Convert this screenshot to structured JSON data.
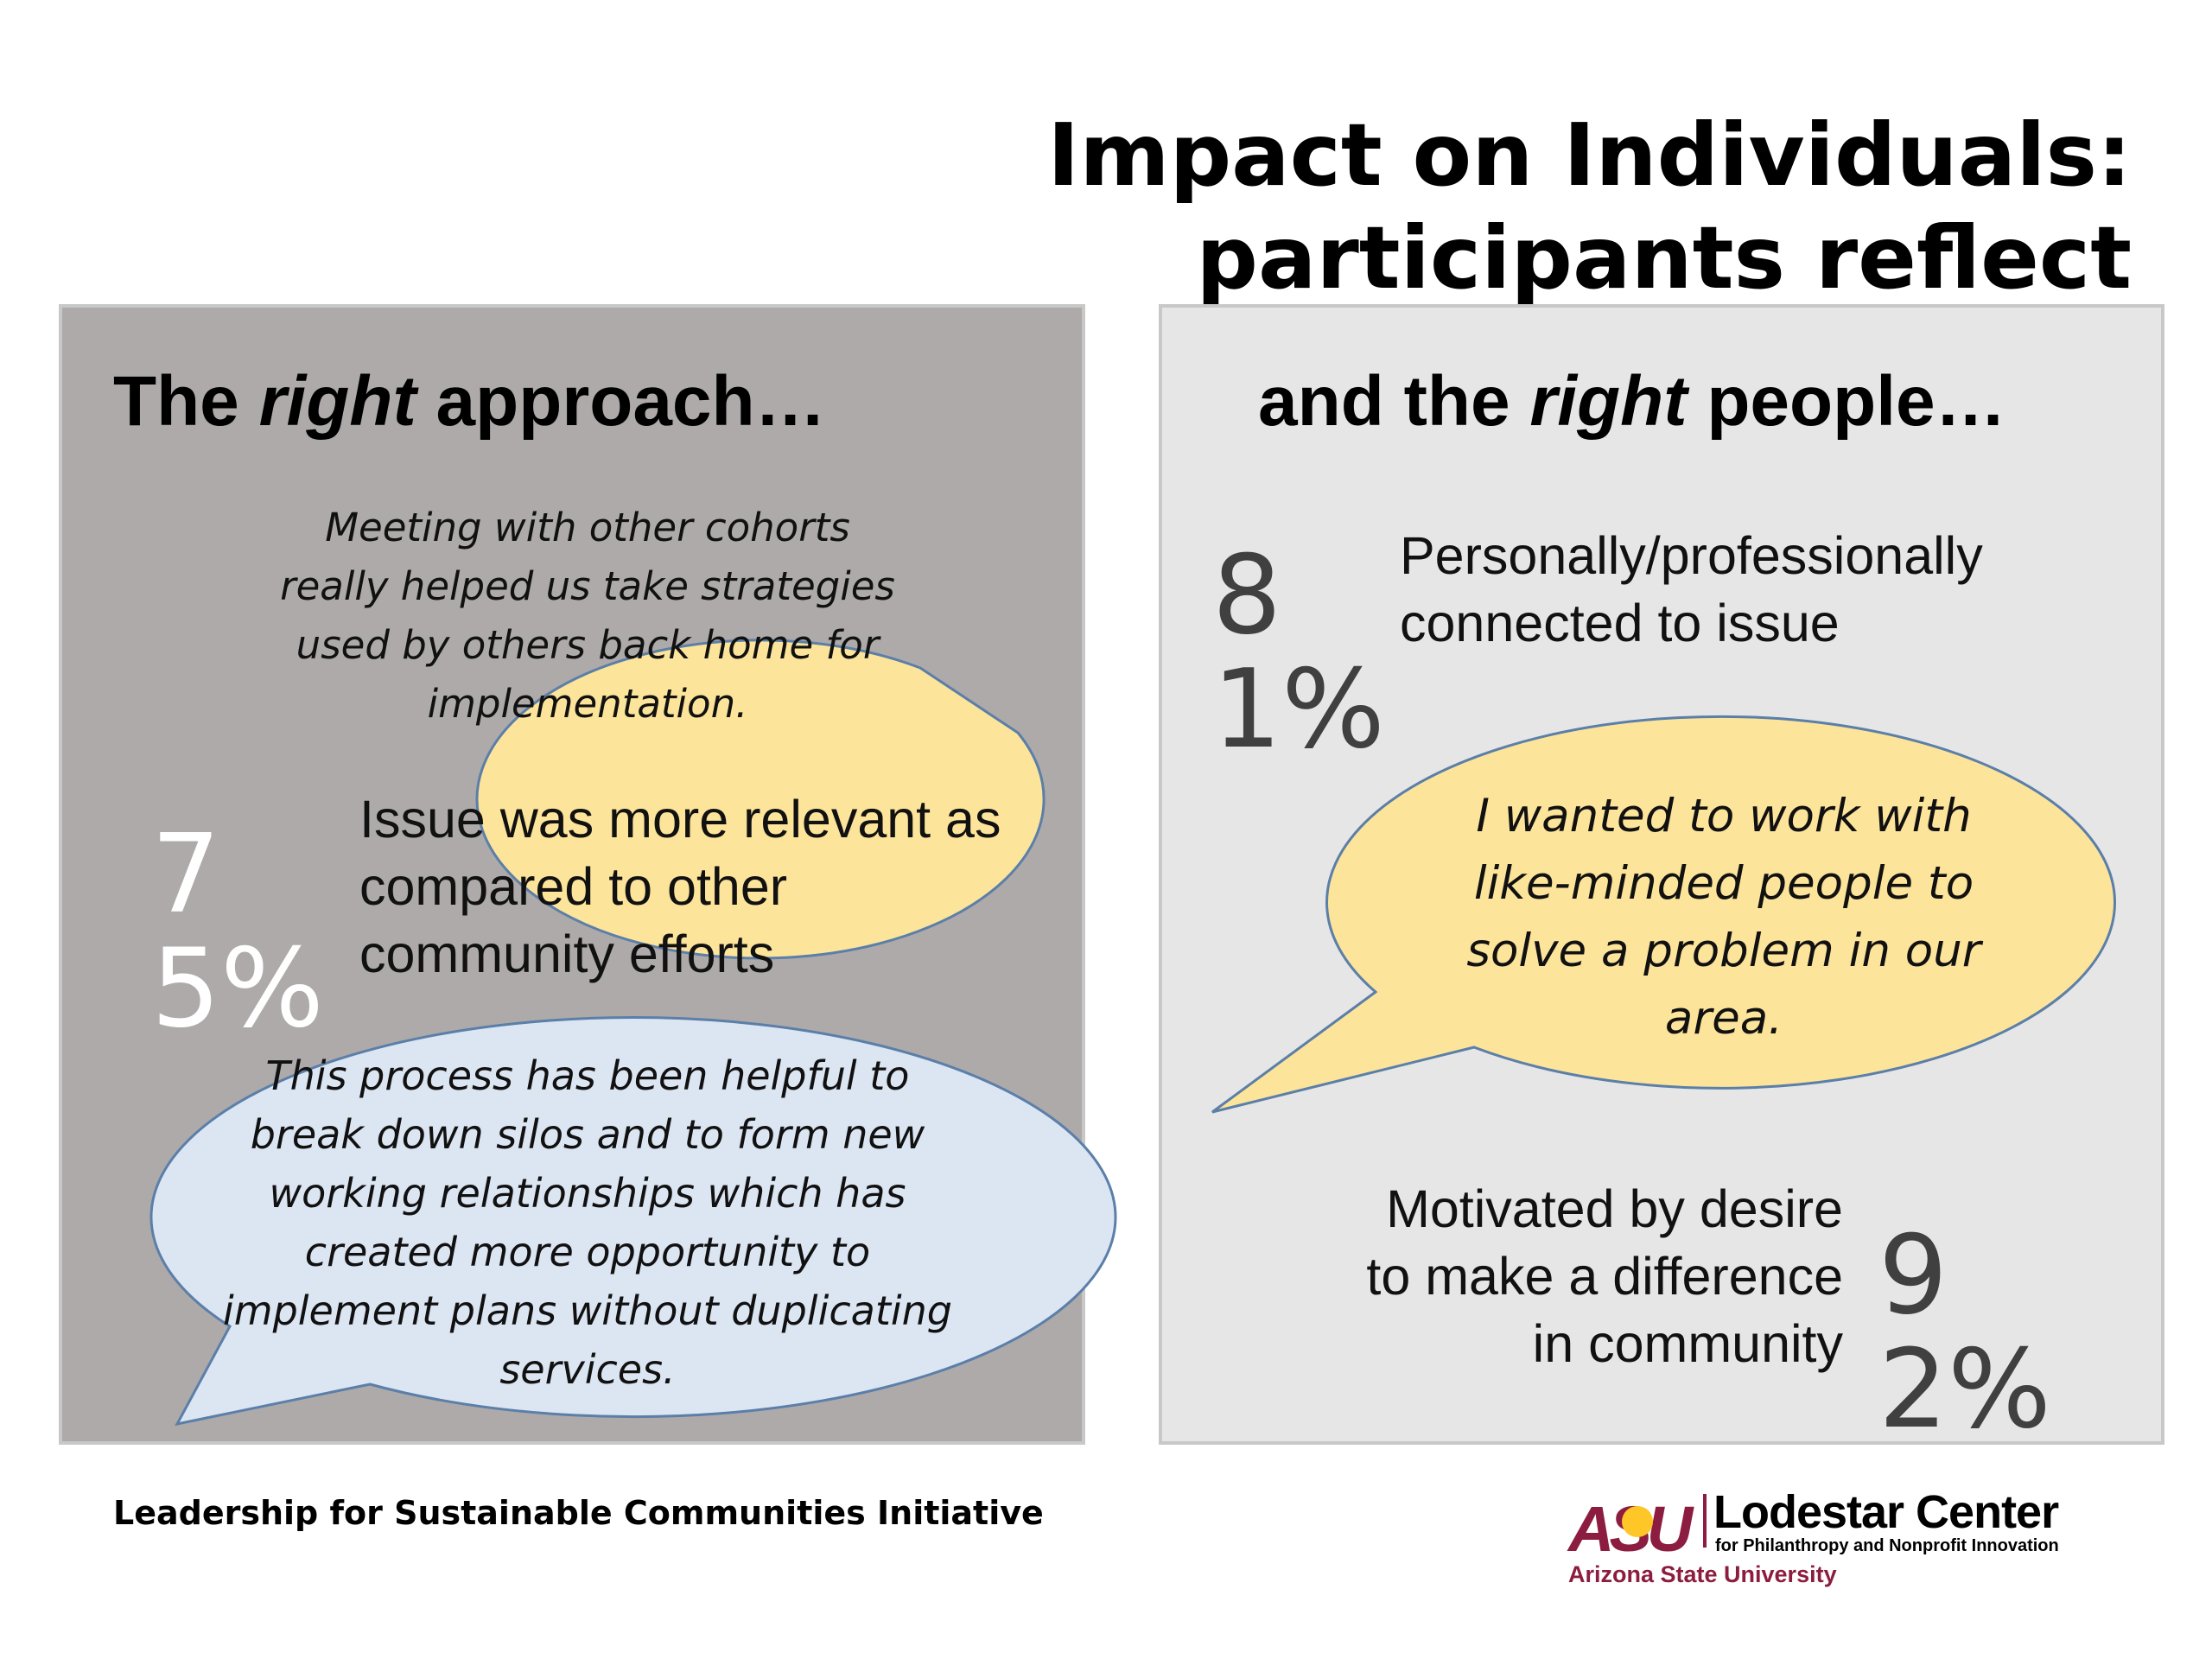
{
  "title": {
    "line1": "Impact on Individuals:",
    "line2": "participants reflect"
  },
  "left_panel": {
    "heading": {
      "before": "The ",
      "em": "right",
      "after": " approach…"
    },
    "stat": {
      "value": "75%",
      "text_lines": [
        "Issue was more relevant as",
        "compared to other",
        "community efforts"
      ]
    },
    "quote_top": {
      "lines": [
        "Meeting with other cohorts",
        "really helped us take strategies",
        "used by others back home for",
        "implementation."
      ]
    },
    "quote_bottom": {
      "lines": [
        "This process has been helpful to",
        "break down silos and to form new",
        "working relationships which has",
        "created more opportunity to",
        "implement plans without duplicating",
        "services."
      ]
    }
  },
  "right_panel": {
    "heading": {
      "before": "and the ",
      "em": "right",
      "after": " people…"
    },
    "stat_top": {
      "value": "81%",
      "text_lines": [
        "Personally/professionally",
        "connected to issue"
      ]
    },
    "quote": {
      "lines": [
        "I wanted to work with",
        "like-minded people to",
        "solve a problem in our",
        "area."
      ]
    },
    "stat_bottom": {
      "value": "92%",
      "text_lines": [
        "Motivated by desire",
        "to make a difference",
        "in community"
      ]
    }
  },
  "footer": {
    "initiative": "Leadership for Sustainable Communities Initiative"
  },
  "logo": {
    "asu": "ASU",
    "center_name": "Lodestar Center",
    "center_sub": "for Philanthropy and Nonprofit Innovation",
    "university": "Arizona State University"
  },
  "colors": {
    "left_panel_bg": "#aeaaaa",
    "right_panel_bg": "#e6e6e6",
    "yellow_bubble": "#fde49b",
    "blue_bubble": "#dce5f2",
    "asu_maroon": "#8c1d40",
    "asu_gold": "#ffc627"
  }
}
